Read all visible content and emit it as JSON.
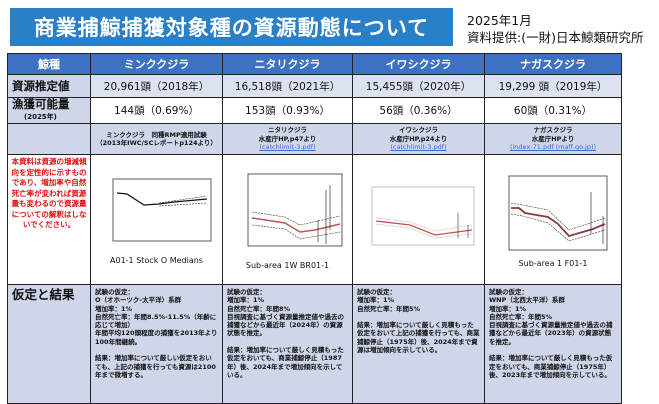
{
  "header": {
    "title": "商業捕鯨捕獲対象種の資源動態について",
    "date": "2025年1月",
    "source": "資料提供:(一財)日本鯨類研究所"
  },
  "table": {
    "col_header": "鯨種",
    "species": [
      "ミンククジラ",
      "ニタリクジラ",
      "イワシクジラ",
      "ナガスクジラ"
    ],
    "estimate_label": "資源推定値",
    "estimates": [
      "20,961頭（2018年）",
      "16,518頭（2021年）",
      "15,455頭（2020年）",
      "19,299 頭（2019年）"
    ],
    "quota_label": "漁獲可能量",
    "quota_year": "(2025年)",
    "quotas": [
      "144頭（0.69%）",
      "153頭（0.93%）",
      "56頭（0.36%）",
      "60頭（0.31%）"
    ],
    "sources": [
      {
        "line1": "ミンククジラ　同種RMP適用試験",
        "line2": "（2013年IWC/SCレポートp124より）",
        "link": ""
      },
      {
        "line1": "ニタリクジラ",
        "line2": "水産庁HP,p47より",
        "link": "(catchlimit-3.pdf)"
      },
      {
        "line1": "イワシクジラ",
        "line2": "水産庁HP,p24より",
        "link": "(catchlimit-3.pdf)"
      },
      {
        "line1": "ナガスクジラ",
        "line2": "水産庁HPより",
        "link": "(index-71.pdf (maff.go.jp))"
      }
    ],
    "note": "本資料は資源の増減傾向を定性的に示すものであり、増加率や自然死亡率が変われば資源量も変わるので資源量についての解釈はしないでください。",
    "chart_captions": [
      "A01-1 Stock  O Medians",
      "Sub-area 1W BR01-1",
      "",
      "Sub-area 1     F01-1"
    ],
    "result_label": "仮定と結果",
    "results": [
      "試験の仮定：\nO（オホーツク-太平洋）系群\n増加率：1%\n自然死亡率：年間8.5%-11.5%（年齢に応じて増加）\n年間平均120頭程度の捕獲を2013年より100年間継続。\n\n結果：増加率について厳しい仮定をおいても、上記の捕獲を行っても資源は2100年まで微増する。",
      "試験の仮定：\n増加率：1%\n自然死亡率：年間8%\n目視調査に基づく資源量推定値や過去の捕獲などから最近年（2024年）の資源状態を推定。\n\n結果：増加率について厳しく見積もった仮定をおいても、商業捕鯨停止（1987年）後、2024年まで増加傾向を示している。",
      "試験の仮定：\n増加率：1%\n自然死亡率：年間5%\n\n結果：増加率について厳しく見積もった仮定をおいて上記の捕獲を行っても、商業捕鯨停止（1975年）後、2024年まで資源は増加傾向を示している。",
      "試験の仮定：\nWNP（北西太平洋）系群\n増加率：1%\n自然死亡率：年間5%\n目視調査に基づく資源量推定値や過去の捕獲などから最近年（2023年）の資源状態を推定。\n\n結果：増加率について厳しく見積もった仮定をおいても、商業捕鯨停止（1975年）後、2023年まで増加傾向を示している。"
    ]
  },
  "colors": {
    "title_bg": "#2a80c6",
    "header_bg": "#3f71c2",
    "row_bg": "#cfd6ea",
    "note": "#e01010"
  }
}
